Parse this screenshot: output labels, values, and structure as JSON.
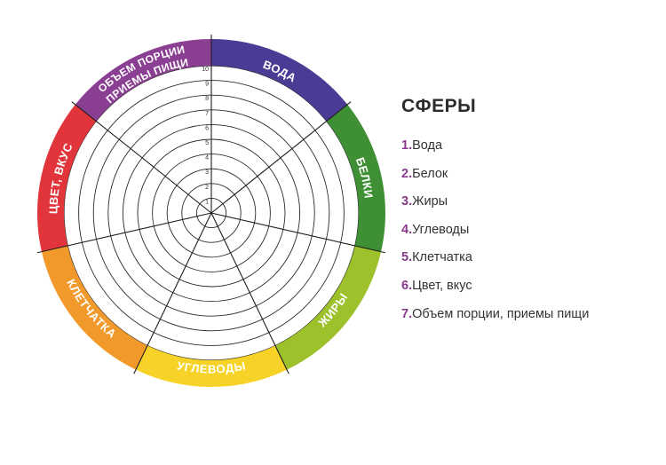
{
  "wheel": {
    "scale_labels": [
      "1",
      "2",
      "3",
      "4",
      "5",
      "6",
      "7",
      "8",
      "9",
      "10"
    ],
    "segments": [
      {
        "label_lines": [
          "ВОДА"
        ],
        "color": "#4b3b95"
      },
      {
        "label_lines": [
          "БЕЛКИ"
        ],
        "color": "#3f8f34"
      },
      {
        "label_lines": [
          "ЖИРЫ"
        ],
        "color": "#9cc12a"
      },
      {
        "label_lines": [
          "УГЛЕВОДЫ"
        ],
        "color": "#f7d327"
      },
      {
        "label_lines": [
          "КЛЕТЧАТКА"
        ],
        "color": "#f19a2b"
      },
      {
        "label_lines": [
          "ЦВЕТ, ВКУС"
        ],
        "color": "#e2353b"
      },
      {
        "label_lines": [
          "ОБЪЕМ ПОРЦИИ",
          "ПРИЕМЫ ПИЩИ"
        ],
        "color": "#8b3f92"
      }
    ]
  },
  "legend": {
    "title": "СФЕРЫ",
    "items": [
      {
        "num": "1.",
        "text": "Вода"
      },
      {
        "num": "2.",
        "text": "Белок"
      },
      {
        "num": "3.",
        "text": "Жиры"
      },
      {
        "num": "4.",
        "text": "Углеводы"
      },
      {
        "num": "5.",
        "text": "Клетчатка"
      },
      {
        "num": "6.",
        "text": "Цвет, вкус"
      },
      {
        "num": "7.",
        "text": "Объем порции, приемы пищи"
      }
    ]
  }
}
